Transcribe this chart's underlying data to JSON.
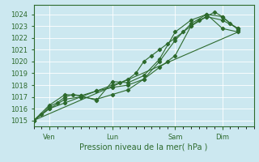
{
  "background_color": "#cce8f0",
  "grid_color": "#ffffff",
  "line_color": "#2d6a2d",
  "text_color": "#2d6a2d",
  "xlabel": "Pression niveau de la mer( hPa )",
  "ylim": [
    1014.5,
    1024.8
  ],
  "yticks": [
    1015,
    1016,
    1017,
    1018,
    1019,
    1020,
    1021,
    1022,
    1023,
    1024
  ],
  "day_labels": [
    "Ven",
    "Lun",
    "Sam",
    "Dim"
  ],
  "day_positions": [
    12,
    60,
    108,
    144
  ],
  "xlim": [
    0,
    168
  ],
  "series1_x": [
    0,
    6,
    12,
    18,
    24,
    30,
    36,
    48,
    60,
    66,
    72,
    78,
    84,
    90,
    96,
    102,
    108,
    114,
    120,
    126,
    132,
    138,
    144,
    150,
    156
  ],
  "series1_y": [
    1015.0,
    1015.5,
    1016.2,
    1016.5,
    1017.0,
    1017.2,
    1017.1,
    1017.5,
    1018.0,
    1018.2,
    1018.5,
    1019.0,
    1020.0,
    1020.5,
    1021.0,
    1021.5,
    1022.0,
    1022.5,
    1023.0,
    1023.5,
    1023.8,
    1024.2,
    1023.8,
    1023.2,
    1022.8
  ],
  "series2_x": [
    0,
    12,
    24,
    36,
    48,
    60,
    72,
    84,
    96,
    108,
    120,
    132,
    144,
    156
  ],
  "series2_y": [
    1015.0,
    1016.0,
    1016.8,
    1017.0,
    1016.8,
    1017.2,
    1017.6,
    1018.5,
    1020.0,
    1021.8,
    1023.2,
    1024.0,
    1023.8,
    1022.7
  ],
  "series3_x": [
    0,
    12,
    24,
    36,
    48,
    60,
    72,
    84,
    96,
    108,
    120,
    132,
    144,
    156
  ],
  "series3_y": [
    1015.0,
    1016.3,
    1017.2,
    1017.1,
    1016.7,
    1018.3,
    1018.2,
    1018.8,
    1020.2,
    1022.5,
    1023.5,
    1024.0,
    1022.8,
    1022.5
  ],
  "series4_x": [
    0,
    156
  ],
  "series4_y": [
    1015.0,
    1022.5
  ],
  "series5_x": [
    0,
    12,
    24,
    36,
    48,
    60,
    72,
    84,
    96,
    102,
    108,
    120,
    132,
    144,
    156
  ],
  "series5_y": [
    1015.0,
    1016.0,
    1016.5,
    1017.0,
    1017.5,
    1017.8,
    1018.0,
    1018.5,
    1019.5,
    1020.0,
    1020.5,
    1023.0,
    1023.8,
    1023.5,
    1022.8
  ]
}
